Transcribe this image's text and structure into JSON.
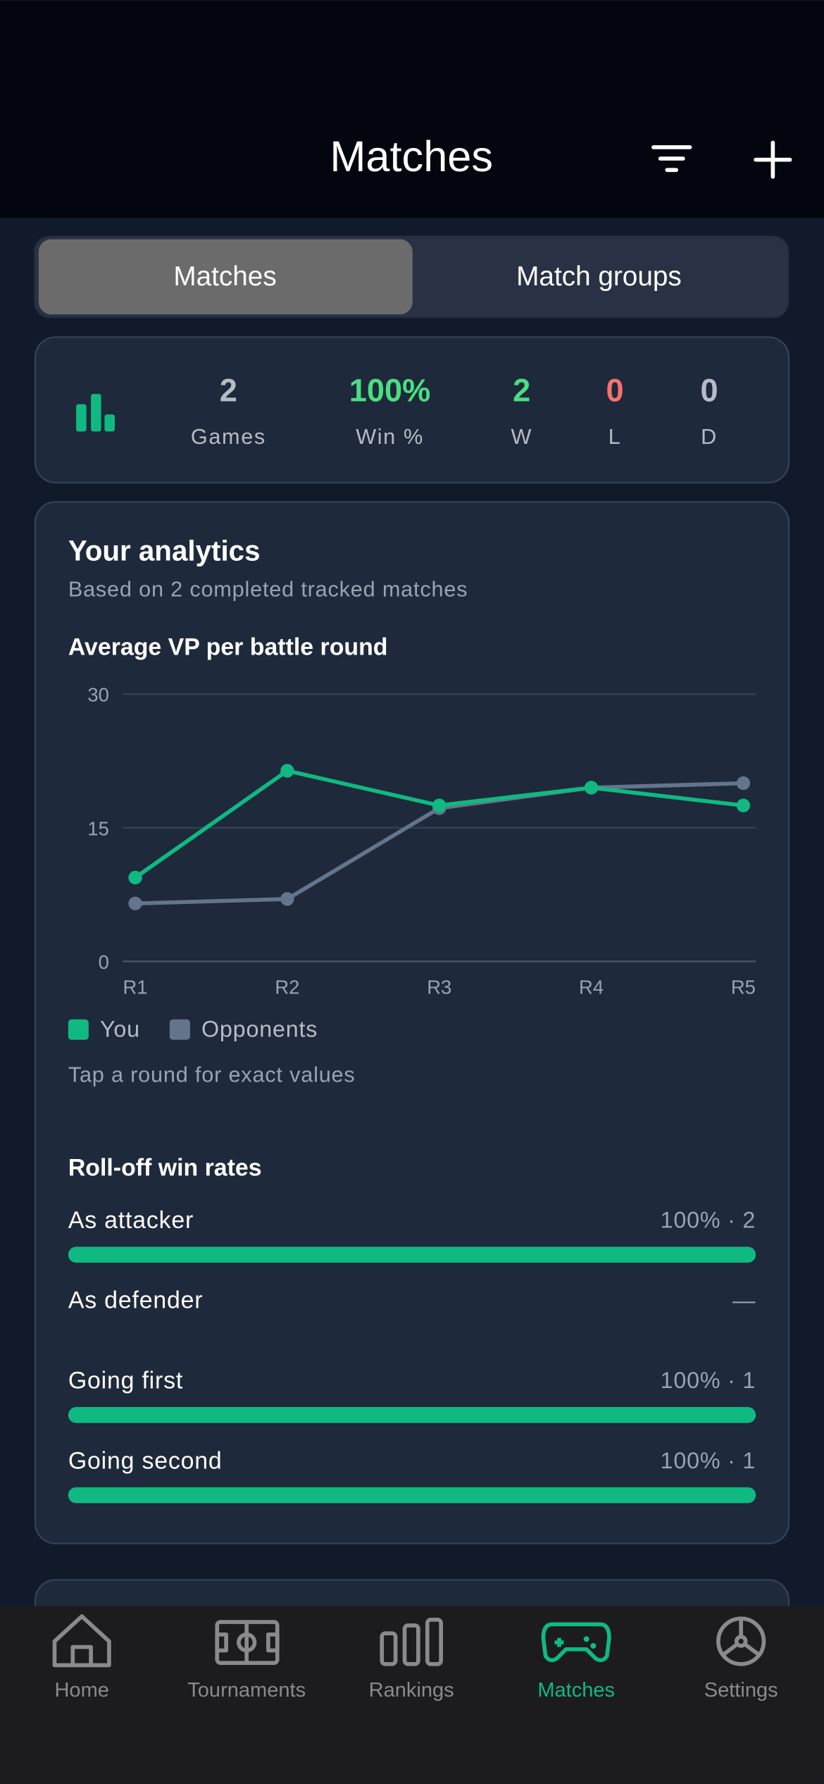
{
  "header": {
    "title": "Matches"
  },
  "tabs": [
    "Matches",
    "Match groups"
  ],
  "stats": [
    {
      "value": "2",
      "label": "Games"
    },
    {
      "value": "100%",
      "label": "Win %"
    },
    {
      "value": "2",
      "label": "W"
    },
    {
      "value": "0",
      "label": "L"
    },
    {
      "value": "0",
      "label": "D"
    }
  ],
  "analytics": {
    "title": "Your analytics",
    "subtitle": "Based on 2 completed tracked matches",
    "hint": "Tap a round for exact values"
  },
  "chart_data": {
    "type": "line",
    "title": "Average VP per battle round",
    "categories": [
      "R1",
      "R2",
      "R3",
      "R4",
      "R5"
    ],
    "series": [
      {
        "name": "You",
        "color": "#10b981",
        "values": [
          9.4,
          21.4,
          17.5,
          19.5,
          17.5
        ]
      },
      {
        "name": "Opponents",
        "color": "#64748b",
        "values": [
          6.5,
          7.0,
          17.2,
          19.5,
          20.0
        ]
      }
    ],
    "ylim": [
      0,
      30
    ],
    "yticks": [
      0,
      15,
      30
    ],
    "grid": true
  },
  "rolloff": {
    "title": "Roll-off win rates",
    "rows": [
      {
        "label": "As attacker",
        "text": "100% · 2",
        "percent": 100
      },
      {
        "label": "As defender",
        "text": "—",
        "percent": null
      },
      {
        "label": "Going first",
        "text": "100% · 1",
        "percent": 100
      },
      {
        "label": "Going second",
        "text": "100% · 1",
        "percent": 100
      }
    ]
  },
  "nav": [
    "Home",
    "Tournaments",
    "Rankings",
    "Matches",
    "Settings"
  ]
}
